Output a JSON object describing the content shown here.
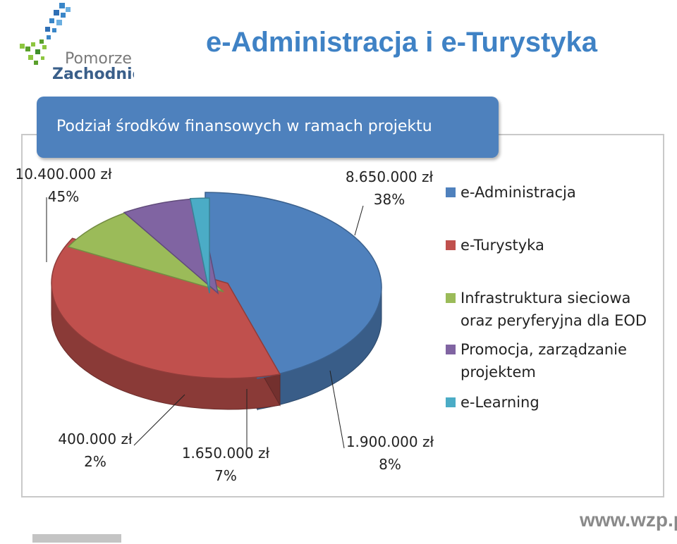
{
  "header": {
    "title": "e-Administracja i e-Turystyka",
    "logo": {
      "line1": "Pomorze",
      "line2": "Zachodnie"
    }
  },
  "banner": {
    "text": "Podział środków finansowych w ramach projektu"
  },
  "chart_data": {
    "type": "pie",
    "style": "3d-exploded",
    "legend_position": "right",
    "slices": [
      {
        "name": "e-Administracja",
        "amount": "10.400.000 zł",
        "value": 10400000,
        "percent": "45%",
        "color": "#4f81bd"
      },
      {
        "name": "e-Turystyka",
        "amount": "8.650.000 zł",
        "value": 8650000,
        "percent": "38%",
        "color": "#c0504d"
      },
      {
        "name": "Infrastruktura sieciowa oraz peryferyjna dla EOD",
        "amount": "1.900.000 zł",
        "value": 1900000,
        "percent": "8%",
        "color": "#9bbb59"
      },
      {
        "name": "Promocja, zarządzanie projektem",
        "amount": "1.650.000 zł",
        "value": 1650000,
        "percent": "7%",
        "color": "#8064a2"
      },
      {
        "name": "e-Learning",
        "amount": "400.000 zł",
        "value": 400000,
        "percent": "2%",
        "color": "#4bacc6"
      }
    ],
    "legend_lines": [
      [
        "e-Administracja"
      ],
      [
        "e-Turystyka"
      ],
      [
        "Infrastruktura sieciowa",
        "oraz peryferyjna dla EOD"
      ],
      [
        "Promocja, zarządzanie",
        "projektem"
      ],
      [
        "e-Learning"
      ]
    ]
  },
  "footer": {
    "url": "www.wzp.pl"
  }
}
